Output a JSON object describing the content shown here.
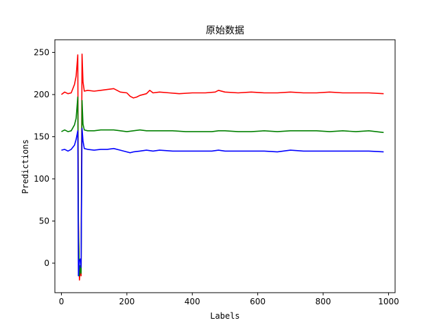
{
  "chart_data": {
    "type": "line",
    "title": "原始数据",
    "xlabel": "Labels",
    "ylabel": "Predictions",
    "xlim": [
      -20,
      1020
    ],
    "ylim": [
      -35,
      265
    ],
    "xticks": [
      0,
      200,
      400,
      600,
      800,
      1000
    ],
    "yticks": [
      0,
      50,
      100,
      150,
      200,
      250
    ],
    "grid": false,
    "legend": "none",
    "series": [
      {
        "color": "#ff0000",
        "x": [
          0,
          10,
          20,
          30,
          40,
          45,
          50,
          52,
          55,
          58,
          60,
          63,
          66,
          70,
          80,
          100,
          120,
          140,
          160,
          180,
          200,
          210,
          220,
          230,
          240,
          260,
          270,
          280,
          300,
          330,
          360,
          400,
          440,
          470,
          480,
          500,
          540,
          580,
          620,
          660,
          700,
          740,
          780,
          820,
          860,
          900,
          940,
          985
        ],
        "y": [
          200,
          203,
          201,
          202,
          212,
          222,
          247,
          50,
          -20,
          -5,
          -15,
          248,
          215,
          204,
          205,
          204,
          205,
          206,
          207,
          203,
          202,
          198,
          196,
          197,
          199,
          201,
          205,
          202,
          203,
          202,
          201,
          202,
          202,
          203,
          205,
          203,
          202,
          203,
          202,
          202,
          203,
          202,
          202,
          203,
          202,
          202,
          202,
          201
        ]
      },
      {
        "color": "#008000",
        "x": [
          0,
          10,
          20,
          30,
          40,
          45,
          50,
          52,
          55,
          58,
          60,
          63,
          66,
          70,
          80,
          100,
          120,
          140,
          160,
          180,
          200,
          220,
          240,
          260,
          280,
          300,
          340,
          380,
          420,
          460,
          480,
          500,
          540,
          580,
          620,
          660,
          700,
          740,
          780,
          820,
          860,
          900,
          940,
          985
        ],
        "y": [
          156,
          158,
          156,
          157,
          164,
          172,
          197,
          40,
          -15,
          -3,
          -12,
          193,
          165,
          158,
          157,
          157,
          158,
          158,
          158,
          157,
          156,
          157,
          158,
          157,
          157,
          157,
          157,
          156,
          156,
          156,
          157,
          157,
          156,
          156,
          157,
          156,
          157,
          157,
          157,
          156,
          157,
          156,
          157,
          155
        ]
      },
      {
        "color": "#0000ff",
        "x": [
          0,
          10,
          20,
          30,
          40,
          45,
          50,
          52,
          55,
          58,
          60,
          63,
          66,
          70,
          80,
          100,
          120,
          140,
          160,
          180,
          200,
          210,
          220,
          240,
          260,
          280,
          300,
          340,
          380,
          420,
          460,
          480,
          500,
          540,
          580,
          620,
          660,
          700,
          740,
          780,
          820,
          860,
          900,
          940,
          985
        ],
        "y": [
          134,
          135,
          133,
          135,
          140,
          147,
          157,
          -15,
          3,
          5,
          -5,
          160,
          145,
          136,
          135,
          134,
          135,
          135,
          136,
          134,
          132,
          131,
          132,
          133,
          134,
          133,
          134,
          133,
          133,
          133,
          133,
          134,
          133,
          133,
          133,
          133,
          132,
          134,
          133,
          133,
          133,
          133,
          133,
          133,
          132
        ]
      }
    ]
  }
}
